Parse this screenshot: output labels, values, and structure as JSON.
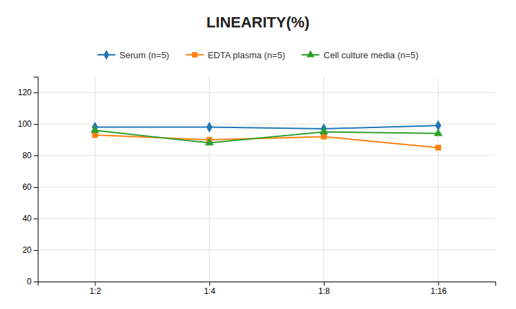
{
  "chart_data": {
    "type": "line",
    "title": "LINEARITY(%)",
    "categories": [
      "1:2",
      "1:4",
      "1:8",
      "1:16"
    ],
    "series": [
      {
        "name": "Serum (n=5)",
        "marker": "diamond",
        "values": [
          98,
          98,
          97,
          99
        ]
      },
      {
        "name": "EDTA plasma (n=5)",
        "marker": "square",
        "values": [
          93,
          90,
          92,
          85
        ]
      },
      {
        "name": "Cell culture media (n=5)",
        "marker": "triangle",
        "values": [
          96,
          88,
          95,
          94
        ]
      }
    ],
    "ylim": [
      0,
      130
    ],
    "yticks": [
      0,
      20,
      40,
      60,
      80,
      100,
      120
    ],
    "grid": true,
    "legend": "top"
  }
}
